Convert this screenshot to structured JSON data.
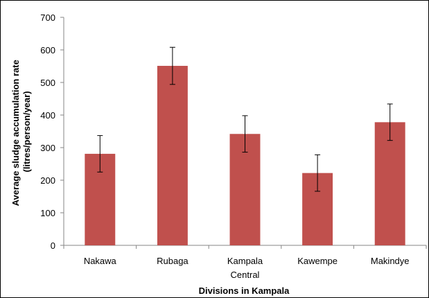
{
  "chart_data": {
    "type": "bar",
    "title": "",
    "xlabel": "Divisions in Kampala",
    "ylabel_lines": [
      "Average sludge accumulation rate",
      "(litres/person/year)"
    ],
    "categories": [
      [
        "Nakawa"
      ],
      [
        "Rubaga"
      ],
      [
        "Kampala",
        "Central"
      ],
      [
        "Kawempe"
      ],
      [
        "Makindye"
      ]
    ],
    "values": [
      281,
      551,
      342,
      222,
      378
    ],
    "error_bars": [
      56,
      57,
      56,
      56,
      56
    ],
    "ylim": [
      0,
      700
    ],
    "yticks": [
      0,
      100,
      200,
      300,
      400,
      500,
      600,
      700
    ],
    "grid": false,
    "legend": "none",
    "bar_color": "#c0504d"
  }
}
